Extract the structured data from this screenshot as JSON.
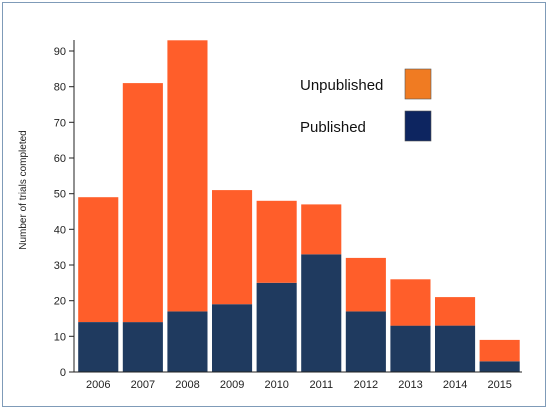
{
  "chart_data": {
    "type": "bar",
    "stacked": true,
    "title": "",
    "xlabel": "",
    "ylabel": "Number of trials completed",
    "ylim": [
      0,
      95
    ],
    "yticks": [
      0,
      10,
      20,
      30,
      40,
      50,
      60,
      70,
      80,
      90
    ],
    "grid": false,
    "legend_position": "top-right",
    "categories": [
      "2006",
      "2007",
      "2008",
      "2009",
      "2010",
      "2011",
      "2012",
      "2013",
      "2014",
      "2015"
    ],
    "series": [
      {
        "name": "Published",
        "color": "#1f3a5f",
        "values": [
          14,
          14,
          17,
          19,
          25,
          33,
          17,
          13,
          13,
          3
        ]
      },
      {
        "name": "Unpublished",
        "color": "#ff5e2a",
        "values": [
          35,
          67,
          76,
          32,
          23,
          14,
          15,
          13,
          8,
          6
        ]
      }
    ],
    "legend": [
      {
        "name": "Unpublished",
        "color": "#f07b22"
      },
      {
        "name": "Published",
        "color": "#0d2560"
      }
    ]
  }
}
